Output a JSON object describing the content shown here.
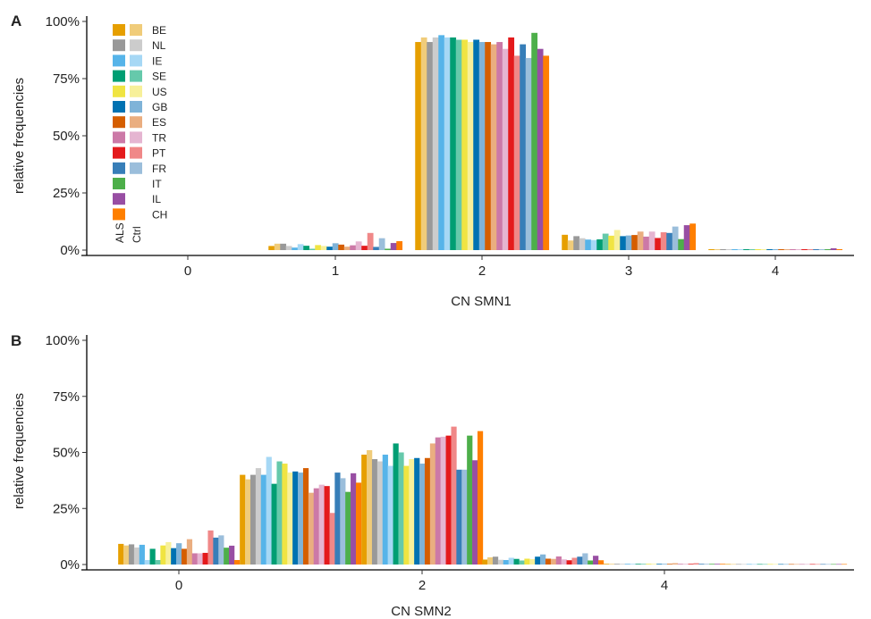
{
  "countries": [
    "BE",
    "NL",
    "IE",
    "SE",
    "US",
    "GB",
    "ES",
    "TR",
    "PT",
    "FR",
    "IT",
    "IL",
    "CH"
  ],
  "colors": {
    "als": [
      "#E69F00",
      "#999999",
      "#56B4E9",
      "#009E73",
      "#F0E442",
      "#0072B2",
      "#D55E00",
      "#CC79A7",
      "#E41A1C",
      "#377EB8",
      "#4DAF4A",
      "#984EA3",
      "#FF7F00"
    ],
    "ctrl": [
      "#F0CC7A",
      "#CCCCCC",
      "#A6D8F5",
      "#66C9AB",
      "#F7F09A",
      "#7FB3D8",
      "#EAAE80",
      "#E5B5D1",
      "#F08888",
      "#9BBEDB"
    ]
  },
  "legend": {
    "als_label": "ALS",
    "ctrl_label": "Ctrl"
  },
  "chart_data": [
    {
      "panel": "A",
      "type": "bar",
      "title": "",
      "xlabel": "CN SMN1",
      "ylabel": "relative frequencies",
      "ylim": [
        0,
        100
      ],
      "yticks": [
        "0%",
        "25%",
        "50%",
        "75%",
        "100%"
      ],
      "categories": [
        "0",
        "1",
        "2",
        "3",
        "4"
      ],
      "x_tick_labels": [
        "0",
        "1",
        "2",
        "3",
        "4"
      ],
      "series": [
        {
          "name": "BE ALS",
          "values": [
            0,
            1.8,
            91,
            6.7,
            0.4
          ]
        },
        {
          "name": "BE Ctrl",
          "values": [
            0,
            2.8,
            93,
            4.2,
            0.4
          ]
        },
        {
          "name": "NL ALS",
          "values": [
            0,
            2.8,
            91,
            6.1,
            0.4
          ]
        },
        {
          "name": "NL Ctrl",
          "values": [
            0,
            1.8,
            93,
            5.2,
            0.4
          ]
        },
        {
          "name": "IE ALS",
          "values": [
            0,
            1.1,
            94,
            4.6,
            0.4
          ]
        },
        {
          "name": "IE Ctrl",
          "values": [
            0,
            2.6,
            93,
            4.4,
            0.4
          ]
        },
        {
          "name": "SE ALS",
          "values": [
            0,
            1.9,
            93,
            4.7,
            0.4
          ]
        },
        {
          "name": "SE Ctrl",
          "values": [
            0,
            0.6,
            92,
            7.2,
            0.4
          ]
        },
        {
          "name": "US ALS",
          "values": [
            0,
            2.2,
            92,
            6.3,
            0.4
          ]
        },
        {
          "name": "US Ctrl",
          "values": [
            0,
            1.8,
            91,
            8.8,
            0.4
          ]
        },
        {
          "name": "GB ALS",
          "values": [
            0,
            1.5,
            92,
            6.1,
            0.4
          ]
        },
        {
          "name": "GB Ctrl",
          "values": [
            0,
            3.0,
            91,
            6.4,
            0.4
          ]
        },
        {
          "name": "ES ALS",
          "values": [
            0,
            2.4,
            91,
            6.6,
            0.4
          ]
        },
        {
          "name": "ES Ctrl",
          "values": [
            0,
            1.5,
            90,
            8.1,
            0.4
          ]
        },
        {
          "name": "TR ALS",
          "values": [
            0,
            2.1,
            91,
            5.9,
            0.4
          ]
        },
        {
          "name": "TR Ctrl",
          "values": [
            0,
            3.8,
            88,
            8.1,
            0.4
          ]
        },
        {
          "name": "PT ALS",
          "values": [
            0,
            1.9,
            93,
            5.3,
            0.4
          ]
        },
        {
          "name": "PT Ctrl",
          "values": [
            0,
            7.5,
            85,
            7.8,
            0.4
          ]
        },
        {
          "name": "FR ALS",
          "values": [
            0,
            1.4,
            90,
            7.5,
            0.4
          ]
        },
        {
          "name": "FR Ctrl",
          "values": [
            0,
            5.2,
            84,
            10.3,
            0.4
          ]
        },
        {
          "name": "IT",
          "values": [
            0,
            0.6,
            95,
            4.8,
            0.4
          ]
        },
        {
          "name": "IL",
          "values": [
            0,
            3.1,
            88,
            10.9,
            0.8
          ]
        },
        {
          "name": "CH",
          "values": [
            0,
            3.9,
            85,
            11.6,
            0.4
          ]
        }
      ]
    },
    {
      "panel": "B",
      "type": "bar",
      "title": "",
      "xlabel": "CN SMN2",
      "ylabel": "relative frequencies",
      "ylim": [
        0,
        100
      ],
      "yticks": [
        "0%",
        "25%",
        "50%",
        "75%",
        "100%"
      ],
      "categories": [
        "0",
        "1",
        "2",
        "3",
        "4",
        "5"
      ],
      "x_tick_labels": [
        "0",
        "",
        "2",
        "",
        "4",
        ""
      ],
      "series": [
        {
          "name": "BE ALS",
          "values": [
            9.2,
            40,
            49,
            2.2,
            0.3,
            0.2
          ]
        },
        {
          "name": "BE Ctrl",
          "values": [
            8.5,
            38,
            51,
            3.2,
            0.3,
            0.2
          ]
        },
        {
          "name": "NL ALS",
          "values": [
            9.0,
            40,
            47,
            3.5,
            0.3,
            0.2
          ]
        },
        {
          "name": "NL Ctrl",
          "values": [
            7.6,
            43,
            46,
            2.1,
            0.3,
            0.2
          ]
        },
        {
          "name": "IE ALS",
          "values": [
            8.8,
            40,
            49,
            2.0,
            0.3,
            0.2
          ]
        },
        {
          "name": "IE Ctrl",
          "values": [
            2.0,
            48,
            44,
            3.0,
            0.3,
            0.2
          ]
        },
        {
          "name": "SE ALS",
          "values": [
            7.0,
            36,
            54,
            2.5,
            0.3,
            0.2
          ]
        },
        {
          "name": "SE Ctrl",
          "values": [
            2.0,
            46,
            50,
            1.8,
            0.3,
            0.2
          ]
        },
        {
          "name": "US ALS",
          "values": [
            8.5,
            45,
            44,
            2.6,
            0.3,
            0.2
          ]
        },
        {
          "name": "US Ctrl",
          "values": [
            10.0,
            41,
            47,
            2.4,
            0.3,
            0.2
          ]
        },
        {
          "name": "GB ALS",
          "values": [
            7.3,
            41.5,
            47.5,
            3.5,
            0.3,
            0.2
          ]
        },
        {
          "name": "GB Ctrl",
          "values": [
            9.5,
            41,
            45,
            4.5,
            0.3,
            0.2
          ]
        },
        {
          "name": "ES ALS",
          "values": [
            7.0,
            43,
            47.5,
            2.6,
            0.3,
            0.2
          ]
        },
        {
          "name": "ES Ctrl",
          "values": [
            11.3,
            32,
            54,
            2.5,
            0.6,
            0.2
          ]
        },
        {
          "name": "TR ALS",
          "values": [
            5.0,
            34,
            56.7,
            3.6,
            0.3,
            0.2
          ]
        },
        {
          "name": "TR Ctrl",
          "values": [
            5.0,
            35.6,
            57,
            2.3,
            0.3,
            0.2
          ]
        },
        {
          "name": "PT ALS",
          "values": [
            5.2,
            35,
            57.5,
            1.9,
            0.3,
            0.2
          ]
        },
        {
          "name": "PT Ctrl",
          "values": [
            15.2,
            23,
            61.5,
            3.0,
            0.6,
            0.2
          ]
        },
        {
          "name": "FR ALS",
          "values": [
            12.0,
            41,
            42.3,
            3.5,
            0.3,
            0.2
          ]
        },
        {
          "name": "FR Ctrl",
          "values": [
            13.0,
            38.5,
            42.3,
            5.0,
            0.3,
            0.2
          ]
        },
        {
          "name": "IT",
          "values": [
            7.5,
            32.4,
            57.5,
            1.8,
            0.3,
            0.2
          ]
        },
        {
          "name": "IL",
          "values": [
            8.4,
            40.7,
            46.5,
            3.9,
            0.3,
            0.2
          ]
        },
        {
          "name": "CH",
          "values": [
            2.0,
            36.5,
            59.5,
            1.9,
            0.3,
            0.2
          ]
        }
      ]
    }
  ]
}
